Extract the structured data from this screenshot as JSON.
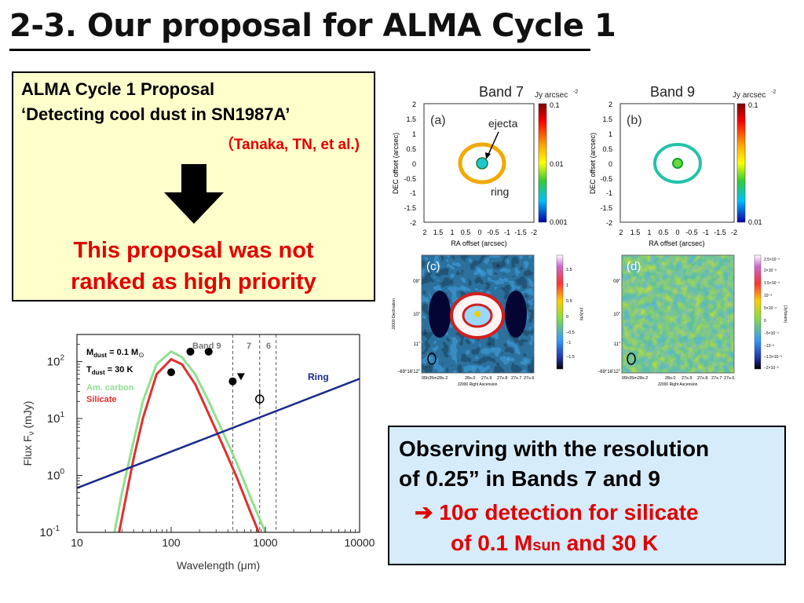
{
  "slide": {
    "title": "2-3. Our proposal for ALMA Cycle 1"
  },
  "proposal_box": {
    "line1": "ALMA Cycle 1 Proposal",
    "line2": "‘Detecting cool dust in SN1987A’",
    "authors": "（Tanaka, TN, et al.)",
    "result_line1": "This proposal was not",
    "result_line2": "ranked as high priority",
    "bg_color": "#ffffcc",
    "result_color": "#e00000"
  },
  "observing_box": {
    "line1": "Observing with the resolution",
    "line2": "of 0.25” in Bands 7 and 9",
    "line3": "➔ 10σ detection for silicate",
    "line4_pre": "of 0.1 M",
    "line4_sub": "sun",
    "line4_post": " and 30 K",
    "bg_color": "#d6ecfa"
  },
  "maps": {
    "band7": {
      "title": "Band 7",
      "unit": "Jy arcsec",
      "unit_exp": "-2",
      "label": "(a)",
      "ejecta_label": "ejecta",
      "ring_label": "ring",
      "colorbar_ticks": [
        "0.1",
        "0.01",
        "0.001"
      ]
    },
    "band9": {
      "title": "Band 9",
      "unit": "Jy arcsec",
      "unit_exp": "-2",
      "label": "(b)",
      "colorbar_ticks": [
        "0.1",
        "0.01"
      ]
    },
    "y_ticks": [
      "2",
      "1.5",
      "1",
      "0.5",
      "0",
      "-0.5",
      "-1",
      "-1.5",
      "-2"
    ],
    "x_ticks": [
      "2",
      "1.5",
      "1",
      "0.5",
      "0",
      "-0.5",
      "-1",
      "-1.5",
      "-2"
    ],
    "ylabel": "DEC offset (arcsec)",
    "xlabel": "RA offset (arcsec)",
    "sim_c_label": "(c)",
    "sim_d_label": "(d)",
    "sim_ylabel": "J2000 Declination",
    "sim_xlabel": "J2000 Right Ascension",
    "sim_c_yticks": [
      "09\"",
      "10\"",
      "11\"",
      "−69°16'12\""
    ],
    "sim_c_xticks": [
      "05h35m28s.2",
      "28s.0",
      "27s.9",
      "27s.8",
      "27s.7",
      "27s.6"
    ],
    "sim_c_cbar": [
      "1.5",
      "1",
      "0.5",
      "0",
      "−0.5",
      "−1",
      "−1.5"
    ],
    "sim_d_cbar": [
      "2.5×10⁻³",
      "2×10⁻³",
      "1.5×10⁻³",
      "10⁻³",
      "5×10⁻⁴",
      "0",
      "−5×10⁻⁴",
      "−10⁻³",
      "−1.5×10⁻³",
      "−2×10⁻³"
    ],
    "sim_c_cbar_unit": "(mJy/b)",
    "sim_d_cbar_unit": "(Jy/beam)"
  },
  "sed_chart": {
    "annotation_mdust": "M",
    "annotation_mdust_sub": "dust",
    "annotation_mdust_val": " = 0.1 M",
    "annotation_sun": "⊙",
    "annotation_tdust": "T",
    "annotation_tdust_sub": "dust",
    "annotation_tdust_val": " = 30 K",
    "legend_carbon": "Am. carbon",
    "legend_silicate": "Silicate",
    "ring_label": "Ring",
    "band_labels": [
      "Band 9",
      "7",
      "6"
    ],
    "xlabel": "Wavelength (μm)",
    "ylabel": "Flux F",
    "ylabel_sub": "ν",
    "ylabel_unit": " (mJy)",
    "x_ticks": [
      "10",
      "100",
      "1000",
      "10000"
    ],
    "y_ticks": [
      {
        "base": "10",
        "exp": "2"
      },
      {
        "base": "10",
        "exp": "1"
      },
      {
        "base": "10",
        "exp": "0"
      },
      {
        "base": "10",
        "exp": "-1"
      }
    ],
    "colors": {
      "carbon": "#8fe08f",
      "silicate": "#e03030",
      "ring": "#1a2a8c"
    }
  },
  "chart_data": {
    "type": "line",
    "xscale": "log",
    "yscale": "log",
    "xlabel": "Wavelength (μm)",
    "ylabel": "Flux Fν (mJy)",
    "xlim": [
      10,
      10000
    ],
    "ylim": [
      0.1,
      300
    ],
    "grid": false,
    "legend_placement": "top-left",
    "series": [
      {
        "name": "Am. carbon",
        "type": "line",
        "x": [
          25,
          30,
          40,
          50,
          70,
          100,
          130,
          180,
          250,
          350,
          500,
          700,
          1000
        ],
        "y": [
          0.1,
          0.5,
          4,
          20,
          90,
          150,
          120,
          60,
          20,
          6,
          1.6,
          0.4,
          0.1
        ]
      },
      {
        "name": "Silicate",
        "type": "line",
        "x": [
          28,
          33,
          40,
          50,
          70,
          100,
          130,
          180,
          250,
          350,
          500,
          700,
          850
        ],
        "y": [
          0.1,
          0.4,
          2,
          10,
          60,
          110,
          90,
          40,
          12,
          3.5,
          0.9,
          0.22,
          0.1
        ]
      },
      {
        "name": "Ring",
        "type": "line",
        "x": [
          10,
          10000
        ],
        "y": [
          0.6,
          50
        ]
      },
      {
        "type": "points",
        "x": [
          100,
          160,
          250,
          450
        ],
        "y": [
          65,
          150,
          150,
          45
        ]
      },
      {
        "type": "upper_limit",
        "x": [
          550
        ],
        "y": [
          55
        ]
      },
      {
        "type": "open_points",
        "x": [
          870
        ],
        "y": [
          22
        ]
      }
    ],
    "band_lines": [
      {
        "name": "Band 9",
        "x": 450
      },
      {
        "name": "7",
        "x": 870
      },
      {
        "name": "6",
        "x": 1300
      }
    ]
  }
}
